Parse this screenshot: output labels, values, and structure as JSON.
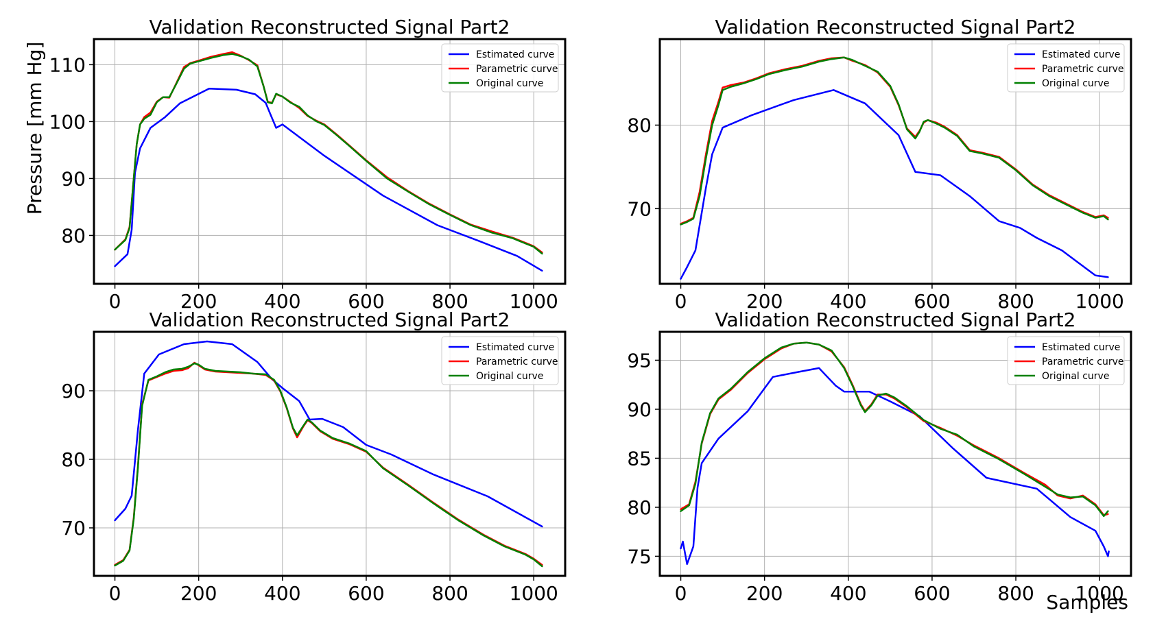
{
  "figure": {
    "ylabel": "Pressure [mm Hg]",
    "xlabel": "Samples"
  },
  "legend": {
    "estimated": "Estimated curve",
    "parametric": "Parametric curve",
    "original": "Original curve"
  },
  "colors": {
    "estimated": "#0000ff",
    "parametric": "#ff0000",
    "original": "#008000"
  },
  "chart_data": [
    {
      "type": "line",
      "title": "Validation Reconstructed Signal Part2",
      "xlabel": "",
      "ylabel": "Pressure [mm Hg]",
      "xlim": [
        -50,
        1075
      ],
      "ylim": [
        71.5,
        114.5
      ],
      "xticks": [
        0,
        200,
        400,
        600,
        800,
        1000
      ],
      "yticks": [
        80,
        90,
        100,
        110
      ],
      "legend_position": "top-right",
      "grid": true,
      "series": [
        {
          "name": "Estimated curve",
          "color": "#0000ff",
          "x": [
            0,
            30,
            40,
            48,
            60,
            85,
            120,
            155,
            225,
            290,
            335,
            360,
            370,
            385,
            400,
            500,
            640,
            770,
            870,
            960,
            1020
          ],
          "y": [
            74.6,
            76.7,
            81,
            91,
            95.3,
            98.9,
            100.8,
            103.2,
            105.8,
            105.6,
            104.8,
            103.3,
            101.5,
            98.9,
            99.5,
            94,
            87,
            81.8,
            79,
            76.4,
            73.8
          ]
        },
        {
          "name": "Parametric curve",
          "color": "#ff0000",
          "x": [
            0,
            25,
            35,
            45,
            52,
            60,
            70,
            85,
            100,
            115,
            130,
            145,
            165,
            180,
            200,
            230,
            260,
            280,
            300,
            320,
            340,
            355,
            365,
            375,
            385,
            400,
            420,
            440,
            460,
            480,
            500,
            530,
            560,
            600,
            650,
            700,
            750,
            800,
            850,
            900,
            950,
            980,
            1000,
            1020
          ],
          "y": [
            77.5,
            79.3,
            81.5,
            90,
            96,
            99.5,
            100.8,
            101.6,
            103.5,
            104.3,
            104.2,
            106.5,
            109.6,
            110.3,
            110.7,
            111.4,
            111.9,
            112.2,
            111.6,
            110.8,
            109.9,
            106.2,
            103.5,
            103.3,
            104.8,
            104.4,
            103.4,
            102.4,
            101,
            100.2,
            99.5,
            97.7,
            95.8,
            93.2,
            90.2,
            87.8,
            85.6,
            83.7,
            81.9,
            80.7,
            79.6,
            78.7,
            78.1,
            77
          ]
        },
        {
          "name": "Original curve",
          "color": "#008000",
          "x": [
            0,
            25,
            35,
            45,
            52,
            60,
            70,
            85,
            100,
            115,
            130,
            145,
            165,
            180,
            200,
            230,
            260,
            280,
            300,
            320,
            340,
            355,
            365,
            375,
            385,
            400,
            420,
            440,
            460,
            480,
            500,
            530,
            560,
            600,
            650,
            700,
            750,
            800,
            850,
            900,
            950,
            980,
            1000,
            1020
          ],
          "y": [
            77.5,
            79.2,
            81.3,
            90,
            96,
            99.5,
            100.5,
            101.2,
            103.4,
            104.3,
            104.3,
            106.4,
            109.3,
            110.2,
            110.6,
            111.2,
            111.7,
            111.9,
            111.5,
            110.9,
            109.7,
            106.2,
            103.4,
            103.2,
            104.9,
            104.4,
            103.3,
            102.6,
            101.1,
            100.1,
            99.4,
            97.6,
            95.7,
            93.1,
            90,
            87.7,
            85.5,
            83.6,
            81.8,
            80.5,
            79.5,
            78.6,
            78,
            76.8
          ]
        }
      ]
    },
    {
      "type": "line",
      "title": "Validation Reconstructed Signal Part2",
      "xlabel": "",
      "ylabel": "",
      "xlim": [
        -50,
        1075
      ],
      "ylim": [
        61,
        90.3
      ],
      "xticks": [
        0,
        200,
        400,
        600,
        800,
        1000
      ],
      "yticks": [
        70,
        80
      ],
      "legend_position": "top-right",
      "grid": true,
      "series": [
        {
          "name": "Estimated curve",
          "color": "#0000ff",
          "x": [
            0,
            15,
            35,
            60,
            75,
            100,
            170,
            270,
            365,
            440,
            520,
            560,
            620,
            690,
            760,
            810,
            850,
            910,
            990,
            1020
          ],
          "y": [
            61.6,
            63,
            65,
            72.5,
            76.5,
            79.7,
            81.2,
            83,
            84.2,
            82.6,
            78.8,
            74.4,
            74,
            71.5,
            68.5,
            67.7,
            66.5,
            65,
            62,
            61.8
          ]
        },
        {
          "name": "Parametric curve",
          "color": "#ff0000",
          "x": [
            0,
            15,
            30,
            45,
            60,
            75,
            90,
            100,
            120,
            150,
            180,
            210,
            250,
            290,
            330,
            360,
            390,
            410,
            440,
            470,
            500,
            520,
            540,
            560,
            570,
            580,
            590,
            610,
            630,
            660,
            690,
            720,
            760,
            800,
            840,
            880,
            920,
            960,
            990,
            1010,
            1020
          ],
          "y": [
            68.2,
            68.5,
            68.9,
            72,
            76.5,
            80.5,
            82.8,
            84.5,
            84.8,
            85.1,
            85.6,
            86.2,
            86.7,
            87.1,
            87.7,
            88,
            88.1,
            87.7,
            87.2,
            86.3,
            84.6,
            82.4,
            79.6,
            78.6,
            79.3,
            80.3,
            80.6,
            80.3,
            79.8,
            78.8,
            77,
            76.7,
            76.2,
            74.7,
            72.9,
            71.6,
            70.6,
            69.6,
            69,
            69.2,
            68.9
          ]
        },
        {
          "name": "Original curve",
          "color": "#008000",
          "x": [
            0,
            15,
            30,
            45,
            60,
            75,
            90,
            100,
            120,
            150,
            180,
            210,
            250,
            290,
            330,
            360,
            390,
            410,
            440,
            470,
            500,
            520,
            540,
            560,
            570,
            580,
            590,
            610,
            630,
            660,
            690,
            720,
            760,
            800,
            840,
            880,
            920,
            960,
            990,
            1010,
            1020
          ],
          "y": [
            68.1,
            68.4,
            68.8,
            71.5,
            76,
            80,
            82.4,
            84.2,
            84.6,
            85,
            85.5,
            86.1,
            86.6,
            87,
            87.6,
            87.9,
            88.1,
            87.8,
            87.1,
            86.4,
            84.7,
            82.5,
            79.5,
            78.4,
            79.2,
            80.4,
            80.6,
            80.2,
            79.7,
            78.7,
            76.9,
            76.6,
            76.1,
            74.6,
            72.8,
            71.5,
            70.5,
            69.5,
            68.9,
            69.1,
            68.7
          ]
        }
      ]
    },
    {
      "type": "line",
      "title": "Validation Reconstructed Signal Part2",
      "xlabel": "",
      "ylabel": "",
      "xlim": [
        -50,
        1075
      ],
      "ylim": [
        63,
        98.6
      ],
      "xticks": [
        0,
        200,
        400,
        600,
        800,
        1000
      ],
      "yticks": [
        70,
        80,
        90
      ],
      "legend_position": "top-right",
      "grid": true,
      "series": [
        {
          "name": "Estimated curve",
          "color": "#0000ff",
          "x": [
            0,
            25,
            40,
            55,
            70,
            105,
            165,
            220,
            280,
            340,
            375,
            400,
            440,
            465,
            495,
            545,
            600,
            660,
            760,
            890,
            1020
          ],
          "y": [
            71.1,
            72.8,
            74.7,
            84.3,
            92.5,
            95.3,
            96.8,
            97.2,
            96.8,
            94.2,
            91.7,
            90.4,
            88.5,
            85.8,
            85.9,
            84.7,
            82.1,
            80.7,
            77.8,
            74.6,
            70.2
          ]
        },
        {
          "name": "Parametric curve",
          "color": "#ff0000",
          "x": [
            0,
            20,
            35,
            45,
            55,
            65,
            80,
            100,
            120,
            140,
            160,
            175,
            190,
            200,
            215,
            240,
            270,
            300,
            330,
            360,
            380,
            395,
            410,
            425,
            435,
            450,
            460,
            470,
            490,
            520,
            560,
            600,
            640,
            700,
            760,
            820,
            880,
            930,
            980,
            1000,
            1020
          ],
          "y": [
            64.6,
            65.3,
            66.8,
            71.5,
            79,
            88,
            91.5,
            92,
            92.5,
            92.9,
            93,
            93.3,
            94.1,
            93.7,
            93.1,
            92.8,
            92.7,
            92.6,
            92.5,
            92.3,
            91.5,
            89.9,
            87.5,
            84.5,
            83.2,
            84.8,
            85.7,
            85.3,
            84.1,
            83,
            82.2,
            81.1,
            78.8,
            76.3,
            73.7,
            71.2,
            69,
            67.4,
            66.2,
            65.5,
            64.6
          ]
        },
        {
          "name": "Original curve",
          "color": "#008000",
          "x": [
            0,
            20,
            35,
            45,
            55,
            65,
            80,
            100,
            120,
            140,
            160,
            175,
            190,
            200,
            215,
            240,
            270,
            300,
            330,
            360,
            380,
            395,
            410,
            425,
            435,
            450,
            460,
            470,
            490,
            520,
            560,
            600,
            640,
            700,
            760,
            820,
            880,
            930,
            980,
            1000,
            1020
          ],
          "y": [
            64.5,
            65.2,
            66.7,
            71.3,
            78.8,
            87.8,
            91.6,
            92.1,
            92.7,
            93.1,
            93.2,
            93.5,
            94,
            93.8,
            93.2,
            92.9,
            92.8,
            92.7,
            92.5,
            92.4,
            91.6,
            90,
            87.6,
            84.6,
            83.5,
            84.9,
            85.8,
            85.4,
            84.2,
            83.1,
            82.3,
            81.2,
            78.7,
            76.2,
            73.6,
            71.1,
            68.9,
            67.3,
            66.1,
            65.4,
            64.4
          ]
        }
      ]
    },
    {
      "type": "line",
      "title": "Validation Reconstructed Signal Part2",
      "xlabel": "Samples",
      "ylabel": "",
      "xlim": [
        -50,
        1075
      ],
      "ylim": [
        73,
        97.9
      ],
      "xticks": [
        0,
        200,
        400,
        600,
        800,
        1000
      ],
      "yticks": [
        75,
        80,
        85,
        90,
        95
      ],
      "legend_position": "top-right",
      "grid": true,
      "series": [
        {
          "name": "Estimated curve",
          "color": "#0000ff",
          "x": [
            0,
            5,
            15,
            30,
            40,
            50,
            90,
            160,
            220,
            280,
            330,
            350,
            370,
            390,
            450,
            500,
            570,
            650,
            730,
            850,
            930,
            990,
            1010,
            1020,
            1022
          ],
          "y": [
            75.8,
            76.5,
            74.2,
            76,
            82,
            84.5,
            87,
            89.8,
            93.3,
            93.8,
            94.2,
            93.3,
            92.4,
            91.8,
            91.8,
            90.8,
            89.3,
            86,
            83,
            81.9,
            79,
            77.6,
            76,
            75,
            75.5
          ]
        },
        {
          "name": "Parametric curve",
          "color": "#ff0000",
          "x": [
            0,
            20,
            35,
            50,
            70,
            90,
            120,
            160,
            200,
            240,
            270,
            300,
            330,
            360,
            390,
            410,
            430,
            440,
            455,
            470,
            490,
            510,
            540,
            580,
            620,
            660,
            700,
            760,
            820,
            870,
            900,
            930,
            960,
            990,
            1010,
            1020
          ],
          "y": [
            79.8,
            80.3,
            82.6,
            86.5,
            89.5,
            91,
            92,
            93.7,
            95.1,
            96.2,
            96.7,
            96.8,
            96.6,
            95.9,
            94.3,
            92.5,
            90.5,
            89.8,
            90.5,
            91.5,
            91.5,
            91.1,
            90.2,
            88.8,
            88.1,
            87.3,
            86.3,
            85,
            83.5,
            82.3,
            81.2,
            80.9,
            81.2,
            80.3,
            79.2,
            79.3
          ]
        },
        {
          "name": "Original curve",
          "color": "#008000",
          "x": [
            0,
            20,
            35,
            50,
            70,
            90,
            120,
            160,
            200,
            240,
            270,
            300,
            330,
            360,
            390,
            410,
            430,
            440,
            455,
            470,
            490,
            510,
            540,
            580,
            620,
            660,
            700,
            760,
            820,
            870,
            900,
            930,
            960,
            990,
            1010,
            1020
          ],
          "y": [
            79.6,
            80.2,
            82.4,
            86.6,
            89.6,
            91.1,
            92.1,
            93.8,
            95.2,
            96.3,
            96.7,
            96.8,
            96.6,
            96,
            94.2,
            92.4,
            90.4,
            89.7,
            90.4,
            91.4,
            91.6,
            91.2,
            90.3,
            88.9,
            88,
            87.4,
            86.2,
            84.9,
            83.4,
            82.1,
            81.3,
            81,
            81.1,
            80.2,
            79.1,
            79.6
          ]
        }
      ]
    }
  ]
}
